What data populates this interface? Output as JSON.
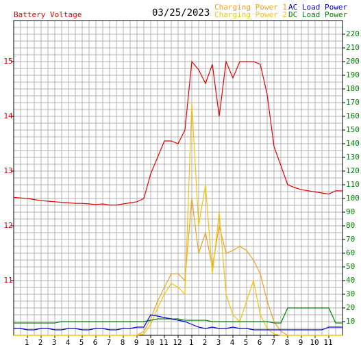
{
  "chart_data": {
    "type": "line",
    "title": "Battery Voltage",
    "subtitle": "03/25/2023",
    "x": [
      0,
      0.5,
      1,
      1.5,
      2,
      2.5,
      3,
      3.5,
      4,
      4.5,
      5,
      5.5,
      6,
      6.5,
      7,
      7.5,
      8,
      8.5,
      9,
      9.5,
      10,
      10.5,
      11,
      11.5,
      12,
      12.5,
      13,
      13.5,
      14,
      14.5,
      15,
      15.5,
      16,
      16.5,
      17,
      17.5,
      18,
      18.5,
      19,
      19.5,
      20,
      20.5,
      21,
      21.5,
      22,
      22.5,
      23,
      23.5,
      24
    ],
    "xlim": [
      0,
      24
    ],
    "xticks": [
      1,
      2,
      3,
      4,
      5,
      6,
      7,
      8,
      9,
      10,
      11,
      12,
      {
        "value": 13,
        "label": "1"
      },
      {
        "value": 14,
        "label": "2"
      },
      {
        "value": 15,
        "label": "3"
      },
      {
        "value": 16,
        "label": "4"
      },
      {
        "value": 17,
        "label": "5"
      },
      {
        "value": 18,
        "label": "6"
      },
      {
        "value": 19,
        "label": "7"
      },
      {
        "value": 20,
        "label": "8"
      },
      {
        "value": 21,
        "label": "9"
      },
      {
        "value": 22,
        "label": "10"
      },
      {
        "value": 23,
        "label": "11"
      }
    ],
    "ylim": [
      10,
      15.75
    ],
    "yticks": [
      11,
      12,
      13,
      14,
      15
    ],
    "y2lim": [
      0,
      230
    ],
    "y2ticks": [
      10,
      20,
      30,
      40,
      50,
      60,
      70,
      80,
      90,
      100,
      110,
      120,
      130,
      140,
      150,
      160,
      170,
      180,
      190,
      200,
      210,
      220
    ],
    "grid": true,
    "series": [
      {
        "name": "Battery Voltage",
        "color": "#e00000",
        "axis": "y",
        "values": [
          12.52,
          12.51,
          12.5,
          12.48,
          12.46,
          12.45,
          12.44,
          12.43,
          12.42,
          12.41,
          12.41,
          12.4,
          12.39,
          12.4,
          12.38,
          12.38,
          12.4,
          12.42,
          12.44,
          12.5,
          12.95,
          13.25,
          13.55,
          13.55,
          13.5,
          13.75,
          15.0,
          14.85,
          14.6,
          14.95,
          14.0,
          15.0,
          14.7,
          15.0,
          15.0,
          15.0,
          14.95,
          14.4,
          13.45,
          13.1,
          12.75,
          12.7,
          12.66,
          12.64,
          12.62,
          12.6,
          12.58,
          12.64,
          12.64
        ]
      },
      {
        "name": "Charging Power 1",
        "color": "#f0a020",
        "axis": "y2",
        "values": [
          0,
          0,
          0,
          0,
          0,
          0,
          0,
          0,
          0,
          0,
          0,
          0,
          0,
          0,
          0,
          0,
          0,
          0,
          0,
          3,
          12,
          25,
          35,
          45,
          45,
          40,
          100,
          60,
          75,
          50,
          80,
          60,
          62,
          65,
          62,
          55,
          45,
          25,
          10,
          3,
          0,
          0,
          0,
          0,
          0,
          0,
          0,
          0,
          0
        ]
      },
      {
        "name": "Charging Power 2",
        "color": "#f5c400",
        "axis": "y2",
        "values": [
          0,
          0,
          0,
          0,
          0,
          0,
          0,
          0,
          0,
          0,
          0,
          0,
          0,
          0,
          0,
          0,
          0,
          0,
          0,
          1,
          8,
          20,
          30,
          38,
          35,
          30,
          170,
          80,
          110,
          45,
          90,
          30,
          15,
          10,
          25,
          40,
          15,
          5,
          1,
          0,
          0,
          0,
          0,
          0,
          0,
          0,
          0,
          0,
          0
        ]
      },
      {
        "name": "AC Load Power",
        "color": "#0000d0",
        "axis": "y2",
        "values": [
          5,
          5,
          4,
          4,
          5,
          5,
          4,
          4,
          5,
          5,
          4,
          4,
          5,
          5,
          4,
          4,
          5,
          5,
          6,
          6,
          15,
          14,
          13,
          12,
          11,
          10,
          8,
          6,
          5,
          6,
          5,
          5,
          6,
          5,
          5,
          4,
          4,
          4,
          4,
          4,
          4,
          4,
          4,
          4,
          4,
          4,
          6,
          6,
          6
        ]
      },
      {
        "name": "DC Load Power",
        "color": "#008000",
        "axis": "y2",
        "values": [
          9,
          9,
          9,
          9,
          9,
          9,
          9,
          10,
          10,
          10,
          10,
          10,
          10,
          10,
          10,
          10,
          10,
          10,
          10,
          10,
          11,
          12,
          12,
          12,
          12,
          11,
          11,
          11,
          11,
          10,
          10,
          10,
          10,
          10,
          10,
          10,
          10,
          10,
          9,
          9,
          20,
          20,
          20,
          20,
          20,
          20,
          20,
          9,
          9
        ]
      }
    ]
  }
}
